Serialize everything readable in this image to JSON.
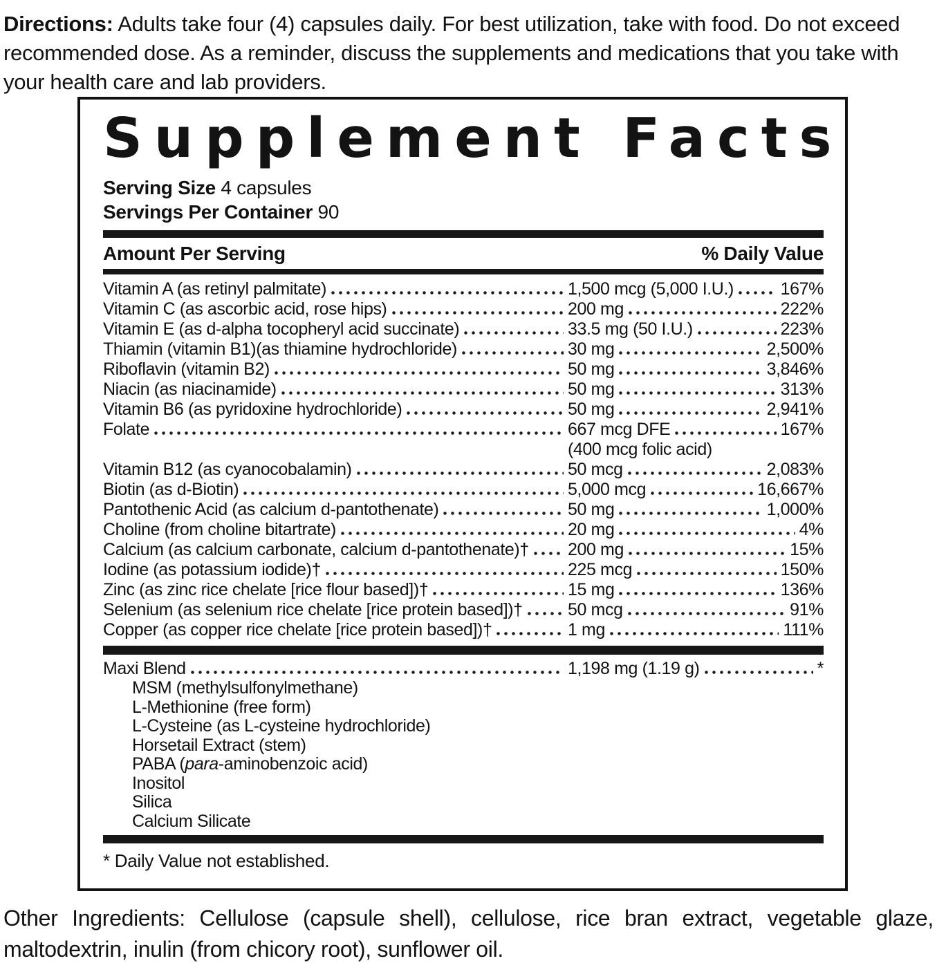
{
  "colors": {
    "ink": "#121212",
    "background": "#ffffff"
  },
  "directions": {
    "label": "Directions:",
    "text": " Adults take four (4) capsules daily. For best utilization, take with food. Do not exceed recommended dose. As a reminder, discuss the supplements and medications that you take with your health care and lab providers."
  },
  "panel": {
    "title": "Supplement Facts",
    "serving_size_label": "Serving Size",
    "serving_size_value": "4 capsules",
    "servings_label": "Servings Per Container",
    "servings_value": "90",
    "amount_header": "Amount Per Serving",
    "dv_header": "% Daily Value",
    "rows": [
      {
        "name": "Vitamin A (as retinyl palmitate)",
        "amount": "1,500 mcg (5,000 I.U.)",
        "dv": "167%"
      },
      {
        "name": "Vitamin C (as ascorbic acid, rose hips)",
        "amount": "200 mg",
        "dv": "222%"
      },
      {
        "name": "Vitamin E (as d-alpha tocopheryl acid succinate)",
        "amount": "33.5 mg (50 I.U.)",
        "dv": "223%"
      },
      {
        "name": "Thiamin (vitamin B1)(as thiamine hydrochloride)",
        "amount": "30 mg",
        "dv": "2,500%"
      },
      {
        "name": "Riboflavin (vitamin B2)",
        "amount": "50 mg",
        "dv": "3,846%"
      },
      {
        "name": "Niacin (as niacinamide)",
        "amount": "50 mg",
        "dv": "313%"
      },
      {
        "name": "Vitamin B6 (as pyridoxine hydrochloride)",
        "amount": "50 mg",
        "dv": "2,941%"
      },
      {
        "name": "Folate",
        "amount": "667 mcg DFE",
        "dv": "167%",
        "amount_note": "(400 mcg folic acid)"
      },
      {
        "name": "Vitamin B12 (as cyanocobalamin)",
        "amount": "50 mcg",
        "dv": "2,083%"
      },
      {
        "name": "Biotin (as d-Biotin)",
        "amount": "5,000 mcg",
        "dv": "16,667%"
      },
      {
        "name": "Pantothenic Acid (as calcium d-pantothenate)",
        "amount": "50 mg",
        "dv": "1,000%"
      },
      {
        "name": "Choline (from choline bitartrate)",
        "amount": "20 mg",
        "dv": "4%"
      },
      {
        "name": "Calcium (as calcium carbonate, calcium d-pantothenate)†",
        "amount": "200 mg",
        "dv": "15%"
      },
      {
        "name": "Iodine (as potassium iodide)†",
        "amount": "225 mcg",
        "dv": "150%"
      },
      {
        "name": "Zinc (as zinc rice chelate [rice flour based])†",
        "amount": "15 mg",
        "dv": "136%"
      },
      {
        "name": "Selenium (as selenium rice chelate [rice protein based])†",
        "amount": "50 mcg",
        "dv": "91%"
      },
      {
        "name": "Copper (as copper rice chelate [rice protein based])†",
        "amount": "1 mg",
        "dv": "111%"
      }
    ],
    "blend": {
      "name": "Maxi Blend",
      "amount": "1,198 mg (1.19 g)",
      "dv": "*",
      "items": [
        "MSM (methylsulfonylmethane)",
        "L-Methionine (free form)",
        "L-Cysteine (as L-cysteine hydrochloride)",
        "Horsetail Extract (stem)",
        {
          "segments": [
            {
              "text": "PABA ("
            },
            {
              "text": "para",
              "italic": true
            },
            {
              "text": "-aminobenzoic acid)"
            }
          ]
        },
        "Inositol",
        "Silica",
        "Calcium Silicate"
      ]
    },
    "footnote": "* Daily Value not established."
  },
  "other_ingredients": {
    "label": "Other Ingredients:",
    "text": " Cellulose (capsule shell), cellulose, rice bran extract, vegetable glaze, maltodextrin, inulin (from chicory root), sunflower oil."
  }
}
